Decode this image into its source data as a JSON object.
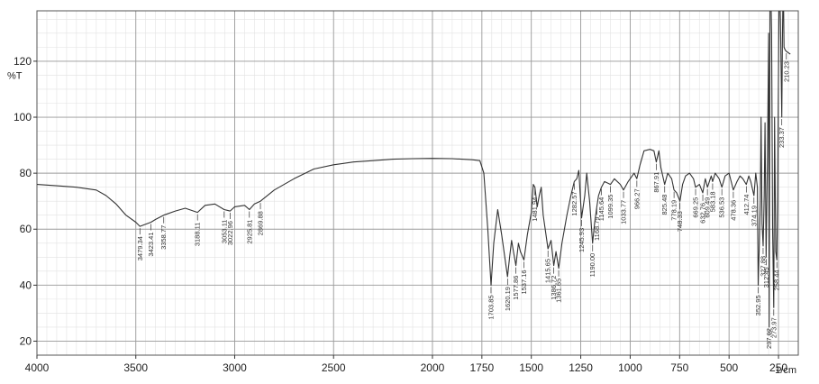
{
  "chart_data": {
    "type": "line",
    "title": "",
    "xlabel": "1/cm",
    "ylabel": "%T",
    "xlim": [
      4000,
      150
    ],
    "ylim": [
      15,
      138
    ],
    "x_reversed": true,
    "grid": true,
    "x_ticks": [
      4000,
      3500,
      3000,
      2500,
      2000,
      1750,
      1500,
      1250,
      1000,
      750,
      500,
      250
    ],
    "x_tick_labels": [
      "4000",
      "3500",
      "3000",
      "2500",
      "2000",
      "1750",
      "1500",
      "1250",
      "1000",
      "750",
      "500",
      "250"
    ],
    "y_ticks": [
      20,
      40,
      60,
      80,
      100,
      120
    ],
    "y_tick_labels": [
      "20",
      "40",
      "60",
      "80",
      "100",
      "120"
    ],
    "series": [
      {
        "color": "#333333",
        "points": [
          [
            4000,
            76
          ],
          [
            3900,
            75.5
          ],
          [
            3800,
            75
          ],
          [
            3700,
            74
          ],
          [
            3650,
            72
          ],
          [
            3600,
            69
          ],
          [
            3550,
            65
          ],
          [
            3500,
            62.5
          ],
          [
            3479.34,
            61
          ],
          [
            3423.41,
            62.5
          ],
          [
            3400,
            63.5
          ],
          [
            3358.77,
            65
          ],
          [
            3300,
            66.5
          ],
          [
            3250,
            67.5
          ],
          [
            3188.11,
            66
          ],
          [
            3150,
            68.5
          ],
          [
            3100,
            69
          ],
          [
            3053.11,
            67
          ],
          [
            3022.96,
            66.5
          ],
          [
            3000,
            68
          ],
          [
            2950,
            68.5
          ],
          [
            2925.81,
            67
          ],
          [
            2900,
            69
          ],
          [
            2869.88,
            70
          ],
          [
            2800,
            74
          ],
          [
            2700,
            78
          ],
          [
            2600,
            81.5
          ],
          [
            2500,
            83
          ],
          [
            2400,
            84
          ],
          [
            2300,
            84.5
          ],
          [
            2200,
            85
          ],
          [
            2100,
            85.2
          ],
          [
            2000,
            85.3
          ],
          [
            1900,
            85.2
          ],
          [
            1800,
            84.8
          ],
          [
            1760,
            84.5
          ],
          [
            1740,
            80
          ],
          [
            1720,
            60
          ],
          [
            1703.85,
            40
          ],
          [
            1690,
            55
          ],
          [
            1670,
            67
          ],
          [
            1650,
            58
          ],
          [
            1620.19,
            43
          ],
          [
            1610,
            50
          ],
          [
            1600,
            56
          ],
          [
            1590,
            52
          ],
          [
            1577.86,
            47
          ],
          [
            1565,
            55
          ],
          [
            1555,
            52
          ],
          [
            1537.16,
            49
          ],
          [
            1520,
            58
          ],
          [
            1500,
            66
          ],
          [
            1490,
            76
          ],
          [
            1481.94,
            75
          ],
          [
            1470,
            68
          ],
          [
            1460,
            72
          ],
          [
            1450,
            75
          ],
          [
            1440,
            65
          ],
          [
            1415.65,
            53
          ],
          [
            1400,
            56
          ],
          [
            1386.72,
            47
          ],
          [
            1375,
            52
          ],
          [
            1361.65,
            46
          ],
          [
            1345,
            55
          ],
          [
            1320,
            65
          ],
          [
            1300,
            72
          ],
          [
            1282.57,
            77
          ],
          [
            1270,
            78
          ],
          [
            1260,
            81
          ],
          [
            1245.93,
            64
          ],
          [
            1230,
            72
          ],
          [
            1220,
            80
          ],
          [
            1205,
            70
          ],
          [
            1190,
            55
          ],
          [
            1180,
            62
          ],
          [
            1168.79,
            68
          ],
          [
            1160,
            72
          ],
          [
            1145.64,
            75
          ],
          [
            1130,
            77
          ],
          [
            1099.35,
            76
          ],
          [
            1080,
            78
          ],
          [
            1050,
            76
          ],
          [
            1033.77,
            74
          ],
          [
            1010,
            77
          ],
          [
            990,
            79
          ],
          [
            980,
            80
          ],
          [
            966.27,
            78
          ],
          [
            950,
            83
          ],
          [
            930,
            88
          ],
          [
            900,
            88.5
          ],
          [
            880,
            88
          ],
          [
            867.91,
            84
          ],
          [
            855,
            88
          ],
          [
            845,
            82
          ],
          [
            825.48,
            76
          ],
          [
            810,
            80
          ],
          [
            790,
            78
          ],
          [
            778.19,
            74
          ],
          [
            765,
            73
          ],
          [
            748.33,
            70
          ],
          [
            735,
            76
          ],
          [
            720,
            79
          ],
          [
            700,
            80
          ],
          [
            680,
            78
          ],
          [
            669.25,
            75
          ],
          [
            650,
            76
          ],
          [
            632.76,
            73
          ],
          [
            620,
            78
          ],
          [
            609.49,
            75
          ],
          [
            590,
            79
          ],
          [
            583.18,
            77
          ],
          [
            570,
            80
          ],
          [
            550,
            78
          ],
          [
            536.53,
            75
          ],
          [
            520,
            79
          ],
          [
            500,
            80
          ],
          [
            478.36,
            74
          ],
          [
            460,
            77
          ],
          [
            445,
            79
          ],
          [
            430,
            78
          ],
          [
            412.74,
            76
          ],
          [
            400,
            79
          ],
          [
            390,
            77
          ],
          [
            374.19,
            72
          ],
          [
            365,
            80
          ],
          [
            357,
            75
          ],
          [
            352.95,
            40
          ],
          [
            347,
            55
          ],
          [
            342,
            70
          ],
          [
            338,
            100
          ],
          [
            333,
            62
          ],
          [
            327.88,
            54
          ],
          [
            322,
            72
          ],
          [
            318,
            98
          ],
          [
            312.45,
            50
          ],
          [
            306,
            85
          ],
          [
            300,
            130
          ],
          [
            297.02,
            25
          ],
          [
            292,
            160
          ],
          [
            285,
            130
          ],
          [
            280,
            60
          ],
          [
            273.97,
            32
          ],
          [
            270,
            100
          ],
          [
            264,
            52
          ],
          [
            258.44,
            49
          ],
          [
            255,
            70
          ],
          [
            250,
            118
          ],
          [
            246,
            150
          ],
          [
            240,
            135
          ],
          [
            233.37,
            100
          ],
          [
            230,
            128
          ],
          [
            226,
            150
          ],
          [
            222,
            125
          ],
          [
            216,
            124
          ],
          [
            210.23,
            123.5
          ],
          [
            200,
            123
          ],
          [
            190,
            122.5
          ]
        ]
      }
    ],
    "peak_labels": [
      {
        "x": 3479.34,
        "y": 61,
        "label": "3479.34"
      },
      {
        "x": 3423.41,
        "y": 62.5,
        "label": "3423.41"
      },
      {
        "x": 3358.77,
        "y": 65,
        "label": "3358.77"
      },
      {
        "x": 3188.11,
        "y": 66,
        "label": "3188.11"
      },
      {
        "x": 3053.11,
        "y": 67,
        "label": "3053.11"
      },
      {
        "x": 3022.96,
        "y": 66.5,
        "label": "3022.96"
      },
      {
        "x": 2925.81,
        "y": 67,
        "label": "2925.81"
      },
      {
        "x": 2869.88,
        "y": 70,
        "label": "2869.88"
      },
      {
        "x": 1703.85,
        "y": 40,
        "label": "1703.85"
      },
      {
        "x": 1620.19,
        "y": 43,
        "label": "1620.19"
      },
      {
        "x": 1577.86,
        "y": 47,
        "label": "1577.86"
      },
      {
        "x": 1537.16,
        "y": 49,
        "label": "1537.16"
      },
      {
        "x": 1481.94,
        "y": 75,
        "label": "1481.94"
      },
      {
        "x": 1415.65,
        "y": 53,
        "label": "1415.65"
      },
      {
        "x": 1386.72,
        "y": 47,
        "label": "1386.72"
      },
      {
        "x": 1361.65,
        "y": 46,
        "label": "1361.65"
      },
      {
        "x": 1282.57,
        "y": 77,
        "label": "1282.57"
      },
      {
        "x": 1245.93,
        "y": 64,
        "label": "1245.93"
      },
      {
        "x": 1190.0,
        "y": 55,
        "label": "1190.00"
      },
      {
        "x": 1168.79,
        "y": 68,
        "label": "1168.79"
      },
      {
        "x": 1145.64,
        "y": 75,
        "label": "1145.64"
      },
      {
        "x": 1099.35,
        "y": 76,
        "label": "1099.35"
      },
      {
        "x": 1033.77,
        "y": 74,
        "label": "1033.77"
      },
      {
        "x": 966.27,
        "y": 78,
        "label": "966.27"
      },
      {
        "x": 867.91,
        "y": 84,
        "label": "867.91"
      },
      {
        "x": 825.48,
        "y": 76,
        "label": "825.48"
      },
      {
        "x": 778.19,
        "y": 74,
        "label": "778.19"
      },
      {
        "x": 748.33,
        "y": 70,
        "label": "748.33"
      },
      {
        "x": 669.25,
        "y": 75,
        "label": "669.25"
      },
      {
        "x": 632.76,
        "y": 73,
        "label": "632.76"
      },
      {
        "x": 609.49,
        "y": 75,
        "label": "609.49"
      },
      {
        "x": 583.18,
        "y": 77,
        "label": "583.18"
      },
      {
        "x": 536.53,
        "y": 75,
        "label": "536.53"
      },
      {
        "x": 478.36,
        "y": 74,
        "label": "478.36"
      },
      {
        "x": 412.74,
        "y": 76,
        "label": "412.74"
      },
      {
        "x": 374.19,
        "y": 72,
        "label": "374.19"
      },
      {
        "x": 352.95,
        "y": 40,
        "label": "352.95"
      },
      {
        "x": 327.88,
        "y": 54,
        "label": "327.88"
      },
      {
        "x": 312.45,
        "y": 50,
        "label": "312.45"
      },
      {
        "x": 297.02,
        "y": 25,
        "label": "297.02"
      },
      {
        "x": 273.97,
        "y": 32,
        "label": "273.97"
      },
      {
        "x": 258.44,
        "y": 49,
        "label": "258.44"
      },
      {
        "x": 233.37,
        "y": 100,
        "label": "233.37"
      },
      {
        "x": 210.23,
        "y": 123.5,
        "label": "210.23"
      }
    ]
  }
}
